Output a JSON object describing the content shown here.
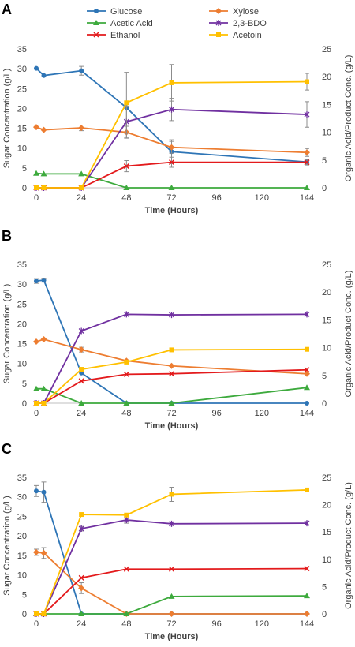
{
  "chart_data": [
    {
      "type": "line",
      "panel_label": "A",
      "xlabel": "Time (Hours)",
      "ylabel_left": "Sugar Concentration (g/L)",
      "ylabel_right": "Organic Acid/Product Conc. (g/L)",
      "xlim": [
        0,
        144
      ],
      "xticks": [
        0,
        24,
        48,
        72,
        96,
        120,
        144
      ],
      "ylim_left": [
        0,
        35
      ],
      "yticks_left": [
        0,
        5,
        10,
        15,
        20,
        25,
        30,
        35
      ],
      "ylim_right": [
        0,
        25
      ],
      "yticks_right": [
        0,
        5,
        10,
        15,
        20,
        25
      ],
      "legend_position": "top",
      "grid": false,
      "series": [
        {
          "name": "Glucose",
          "axis": "left",
          "color": "#2E75B6",
          "marker": "circle",
          "x": [
            0,
            4,
            24,
            48,
            72,
            144
          ],
          "y": [
            30.1,
            28.3,
            29.5,
            20.2,
            9.1,
            6.5
          ],
          "err": [
            0,
            0,
            1.1,
            0,
            3.0,
            0.6
          ]
        },
        {
          "name": "Xylose",
          "axis": "left",
          "color": "#ED7D31",
          "marker": "diamond",
          "x": [
            0,
            4,
            24,
            48,
            72,
            144
          ],
          "y": [
            15.3,
            14.6,
            15.1,
            14.0,
            10.2,
            8.9
          ],
          "err": [
            0,
            0,
            0.7,
            1.5,
            1.5,
            1.0
          ]
        },
        {
          "name": "Acetic Acid",
          "axis": "right",
          "color": "#3DAA3D",
          "marker": "triangle",
          "x": [
            0,
            4,
            24,
            48,
            72,
            144
          ],
          "y": [
            2.6,
            2.5,
            2.5,
            0,
            0,
            0
          ],
          "err": [
            0,
            0,
            0,
            0,
            0,
            0
          ]
        },
        {
          "name": "2,3-BDO",
          "axis": "right",
          "color": "#7030A0",
          "marker": "star",
          "x": [
            0,
            4,
            24,
            48,
            72,
            144
          ],
          "y": [
            0,
            0,
            0,
            11.9,
            14.1,
            13.2
          ],
          "err": [
            0,
            0,
            0,
            2.8,
            2.0,
            2.3
          ]
        },
        {
          "name": "Ethanol",
          "axis": "right",
          "color": "#E31A1C",
          "marker": "x",
          "x": [
            0,
            4,
            24,
            48,
            72,
            144
          ],
          "y": [
            0,
            0,
            0,
            3.9,
            4.6,
            4.6
          ],
          "err": [
            0,
            0,
            0,
            1.0,
            0.9,
            0.5
          ]
        },
        {
          "name": "Acetoin",
          "axis": "right",
          "color": "#FFC000",
          "marker": "square",
          "x": [
            0,
            4,
            24,
            48,
            72,
            144
          ],
          "y": [
            0,
            0,
            0,
            15.3,
            18.9,
            19.1
          ],
          "err": [
            0,
            0,
            0,
            5.5,
            3.3,
            1.5
          ]
        }
      ]
    },
    {
      "type": "line",
      "panel_label": "B",
      "xlabel": "Time (Hours)",
      "ylabel_left": "Sugar Concentration (g/L)",
      "ylabel_right": "Organic Acid/Product Conc. (g/L)",
      "xlim": [
        0,
        144
      ],
      "xticks": [
        0,
        24,
        48,
        72,
        96,
        120,
        144
      ],
      "ylim_left": [
        0,
        35
      ],
      "yticks_left": [
        0,
        5,
        10,
        15,
        20,
        25,
        30,
        35
      ],
      "ylim_right": [
        0,
        25
      ],
      "yticks_right": [
        0,
        5,
        10,
        15,
        20,
        25
      ],
      "grid": false,
      "series": [
        {
          "name": "Glucose",
          "axis": "left",
          "color": "#2E75B6",
          "marker": "circle",
          "x": [
            0,
            4,
            24,
            48,
            72,
            144
          ],
          "y": [
            30.8,
            31.0,
            7.6,
            0,
            0,
            0
          ],
          "err": [
            0.6,
            0.5,
            0,
            0,
            0,
            0
          ]
        },
        {
          "name": "Xylose",
          "axis": "left",
          "color": "#ED7D31",
          "marker": "diamond",
          "x": [
            0,
            4,
            24,
            48,
            72,
            144
          ],
          "y": [
            15.5,
            16.1,
            13.5,
            10.7,
            9.4,
            7.4
          ],
          "err": [
            0,
            0,
            0.6,
            0,
            0,
            0
          ]
        },
        {
          "name": "Acetic Acid",
          "axis": "right",
          "color": "#3DAA3D",
          "marker": "triangle",
          "x": [
            0,
            4,
            24,
            48,
            72,
            144
          ],
          "y": [
            2.6,
            2.6,
            0,
            0,
            0,
            2.8
          ],
          "err": [
            0,
            0,
            0,
            0,
            0,
            0
          ]
        },
        {
          "name": "2,3-BDO",
          "axis": "right",
          "color": "#7030A0",
          "marker": "star",
          "x": [
            0,
            4,
            24,
            48,
            72,
            144
          ],
          "y": [
            0,
            0,
            13.0,
            16.0,
            15.9,
            16.0
          ],
          "err": [
            0,
            0,
            0,
            0,
            0,
            0
          ]
        },
        {
          "name": "Ethanol",
          "axis": "right",
          "color": "#E31A1C",
          "marker": "x",
          "x": [
            0,
            4,
            24,
            48,
            72,
            144
          ],
          "y": [
            0,
            0,
            4.0,
            5.2,
            5.3,
            6.0
          ],
          "err": [
            0,
            0,
            0,
            0,
            0,
            0
          ]
        },
        {
          "name": "Acetoin",
          "axis": "right",
          "color": "#FFC000",
          "marker": "square",
          "x": [
            0,
            4,
            24,
            48,
            72,
            144
          ],
          "y": [
            0,
            0,
            6.1,
            7.4,
            9.6,
            9.7
          ],
          "err": [
            0,
            0,
            0,
            0,
            0,
            0
          ]
        }
      ]
    },
    {
      "type": "line",
      "panel_label": "C",
      "xlabel": "Time (Hours)",
      "ylabel_left": "Sugar Concentration (g/L)",
      "ylabel_right": "Organic Acid/Product Conc. (g/L)",
      "xlim": [
        0,
        144
      ],
      "xticks": [
        0,
        24,
        48,
        72,
        96,
        120,
        144
      ],
      "ylim_left": [
        0,
        35
      ],
      "yticks_left": [
        0,
        5,
        10,
        15,
        20,
        25,
        30,
        35
      ],
      "ylim_right": [
        0,
        25
      ],
      "yticks_right": [
        0,
        5,
        10,
        15,
        20,
        25
      ],
      "grid": false,
      "series": [
        {
          "name": "Glucose",
          "axis": "left",
          "color": "#2E75B6",
          "marker": "circle",
          "x": [
            0,
            4,
            24,
            48,
            72,
            144
          ],
          "y": [
            31.5,
            31.2,
            0,
            0,
            0,
            0
          ],
          "err": [
            1.4,
            2.6,
            0,
            0,
            0,
            0
          ]
        },
        {
          "name": "Xylose",
          "axis": "left",
          "color": "#ED7D31",
          "marker": "diamond",
          "x": [
            0,
            4,
            24,
            48,
            72,
            144
          ],
          "y": [
            15.8,
            15.6,
            6.6,
            0,
            0,
            0
          ],
          "err": [
            0.8,
            1.4,
            1.4,
            0,
            0,
            0
          ]
        },
        {
          "name": "Acetic Acid",
          "axis": "right",
          "color": "#3DAA3D",
          "marker": "triangle",
          "x": [
            0,
            4,
            24,
            48,
            72,
            144
          ],
          "y": [
            0,
            0,
            0,
            0,
            3.2,
            3.3
          ],
          "err": [
            0,
            0,
            0,
            0,
            0,
            0
          ]
        },
        {
          "name": "2,3-BDO",
          "axis": "right",
          "color": "#7030A0",
          "marker": "star",
          "x": [
            0,
            4,
            24,
            48,
            72,
            144
          ],
          "y": [
            0,
            0,
            15.6,
            17.2,
            16.5,
            16.6
          ],
          "err": [
            0,
            0,
            0.4,
            0.6,
            0.3,
            0.3
          ]
        },
        {
          "name": "Ethanol",
          "axis": "right",
          "color": "#E31A1C",
          "marker": "x",
          "x": [
            0,
            4,
            24,
            48,
            72,
            144
          ],
          "y": [
            0,
            0,
            6.6,
            8.2,
            8.2,
            8.3
          ],
          "err": [
            0,
            0,
            0,
            0,
            0,
            0
          ]
        },
        {
          "name": "Acetoin",
          "axis": "right",
          "color": "#FFC000",
          "marker": "square",
          "x": [
            0,
            4,
            24,
            48,
            72,
            144
          ],
          "y": [
            0,
            0,
            18.2,
            18.1,
            21.9,
            22.7
          ],
          "err": [
            0,
            0,
            0,
            0,
            1.3,
            0
          ]
        }
      ]
    }
  ]
}
